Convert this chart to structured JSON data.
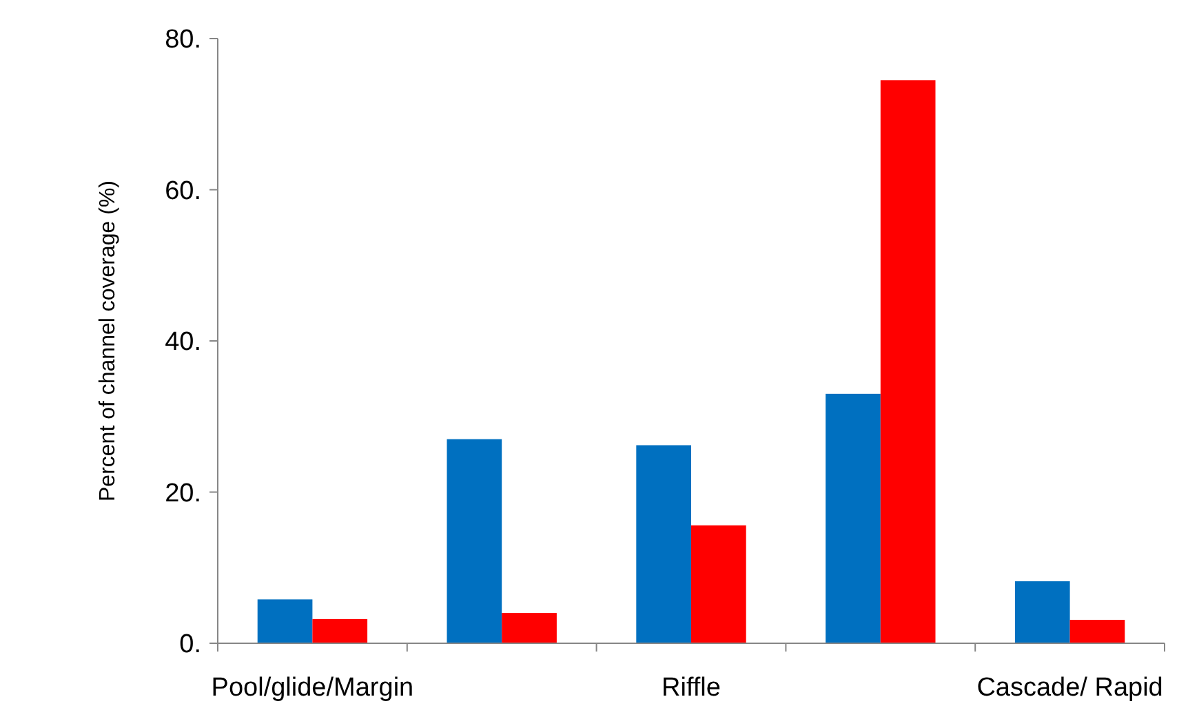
{
  "chart_data": {
    "type": "bar",
    "ylabel": "Percent of channel coverage (%)",
    "categories": [
      "Pool/glide/Margin",
      null,
      "Riffle",
      null,
      "Cascade/ Rapid"
    ],
    "series": [
      {
        "color": "#0070c0",
        "values": [
          5.8,
          27.0,
          26.2,
          33.0,
          8.2
        ]
      },
      {
        "color": "#ff0000",
        "values": [
          3.2,
          4.0,
          15.6,
          74.5,
          3.1
        ]
      }
    ],
    "ylim": [
      0,
      80
    ],
    "yticks": [
      {
        "value": 0,
        "label": "0."
      },
      {
        "value": 20,
        "label": "20."
      },
      {
        "value": 40,
        "label": "40."
      },
      {
        "value": 60,
        "label": "60."
      },
      {
        "value": 80,
        "label": "80."
      }
    ],
    "grid": false
  }
}
